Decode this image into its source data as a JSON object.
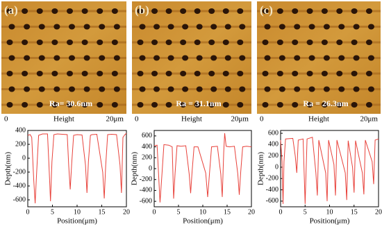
{
  "panels": [
    {
      "label": "(a)",
      "ra": "Ra= 30.6nm",
      "x_start": "0",
      "x_label": "Height",
      "x_end": "20μm"
    },
    {
      "label": "(b)",
      "ra": "Ra = 31.1nm",
      "x_start": "0",
      "x_label": "Height",
      "x_end": "20μm"
    },
    {
      "label": "(c)",
      "ra": "Ra = 26.3nm",
      "x_start": "0",
      "x_label": "Height",
      "x_end": "20μm"
    }
  ],
  "chart_data": [
    {
      "type": "line",
      "x_label": "Position(μm)",
      "y_label": "Depth(nm)",
      "color": "#e8413a",
      "xlim": [
        0,
        20
      ],
      "xticks": [
        0,
        5,
        10,
        15,
        20
      ],
      "ylim": [
        -700,
        400
      ],
      "yticks": [
        400,
        200,
        0,
        -200,
        -400,
        -600
      ],
      "x": [
        0,
        0.5,
        0.8,
        1.2,
        1.5,
        1.8,
        2.2,
        3,
        4,
        4.3,
        4.6,
        4.9,
        5.3,
        6,
        7,
        8,
        8.3,
        8.6,
        8.9,
        9.3,
        10,
        11,
        11.7,
        12,
        12.3,
        12.7,
        13,
        14,
        15.2,
        15.5,
        15.8,
        16.2,
        17,
        18,
        18.7,
        19,
        19.3,
        19.7,
        20
      ],
      "values": [
        330,
        340,
        300,
        -300,
        -650,
        -200,
        330,
        350,
        350,
        -100,
        -620,
        -50,
        340,
        350,
        345,
        340,
        -100,
        -450,
        -80,
        330,
        340,
        335,
        -100,
        -500,
        -50,
        330,
        340,
        345,
        -200,
        -580,
        -100,
        340,
        345,
        340,
        -100,
        -500,
        300,
        340,
        360
      ]
    },
    {
      "type": "line",
      "x_label": "Position(μm)",
      "y_label": "Depth(nm)",
      "color": "#e8413a",
      "xlim": [
        0,
        20
      ],
      "xticks": [
        0,
        5,
        10,
        15,
        20
      ],
      "ylim": [
        -700,
        700
      ],
      "yticks": [
        600,
        400,
        200,
        0,
        -200,
        -400,
        -600
      ],
      "x": [
        0,
        0.6,
        0.9,
        1.2,
        1.6,
        2,
        3,
        3.7,
        4,
        4.3,
        4.7,
        5.5,
        6.5,
        7.2,
        7.5,
        7.8,
        8.2,
        9,
        10.6,
        11,
        11.4,
        11.8,
        13,
        13.7,
        14,
        14.3,
        14.5,
        14.8,
        15.5,
        16.5,
        17.2,
        17.5,
        17.8,
        18.2,
        19,
        20
      ],
      "values": [
        420,
        430,
        -100,
        -620,
        -100,
        440,
        430,
        400,
        -550,
        -80,
        420,
        410,
        420,
        -100,
        -450,
        -50,
        400,
        400,
        -80,
        -520,
        -60,
        400,
        410,
        -100,
        -520,
        300,
        650,
        410,
        400,
        410,
        -100,
        -480,
        -60,
        400,
        410,
        400
      ]
    },
    {
      "type": "line",
      "x_label": "Position(μm)",
      "y_label": "Depth(nm)",
      "color": "#e8413a",
      "xlim": [
        0,
        20
      ],
      "xticks": [
        0,
        5,
        10,
        15,
        20
      ],
      "ylim": [
        -700,
        650
      ],
      "yticks": [
        600,
        400,
        200,
        0,
        -200,
        -400,
        -600
      ],
      "x": [
        0,
        0.3,
        0.5,
        0.7,
        1,
        2.5,
        3,
        3.3,
        3.6,
        4.6,
        5,
        5.4,
        6.5,
        7.2,
        7.5,
        7.8,
        9.2,
        9.5,
        9.8,
        10.9,
        11.2,
        11.5,
        13.2,
        13.5,
        13.8,
        14.7,
        15,
        15.3,
        16.7,
        17,
        17.3,
        18.7,
        19,
        19.3,
        20
      ],
      "values": [
        480,
        100,
        -650,
        100,
        500,
        510,
        200,
        -100,
        480,
        500,
        -650,
        500,
        530,
        -100,
        -500,
        480,
        -100,
        -600,
        480,
        50,
        -500,
        480,
        -100,
        -580,
        470,
        0,
        -450,
        470,
        -100,
        -480,
        480,
        100,
        -300,
        480,
        500
      ]
    }
  ]
}
